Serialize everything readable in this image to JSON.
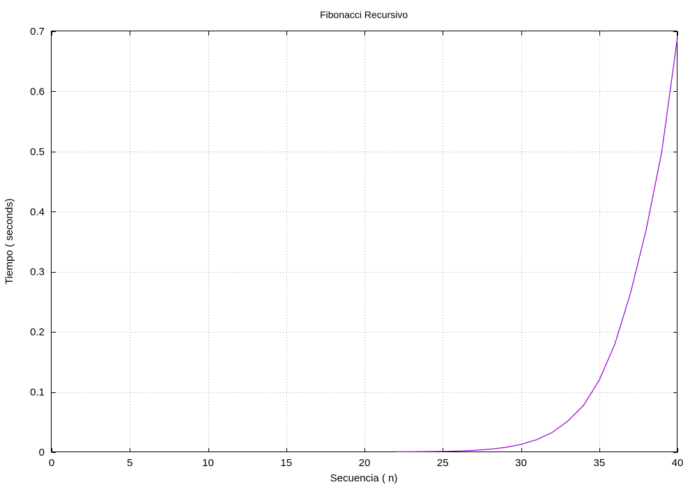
{
  "chart_data": {
    "type": "line",
    "title": "Fibonacci Recursivo",
    "xlabel": "Secuencia ( n)",
    "ylabel": "Tiempo ( seconds)",
    "xlim": [
      0,
      40
    ],
    "ylim": [
      0,
      0.7
    ],
    "xticks": [
      0,
      5,
      10,
      15,
      20,
      25,
      30,
      35,
      40
    ],
    "yticks": [
      0,
      0.1,
      0.2,
      0.3,
      0.4,
      0.5,
      0.6,
      0.7
    ],
    "xtick_labels": [
      "0",
      "5",
      "10",
      "15",
      "20",
      "25",
      "30",
      "35",
      "40"
    ],
    "ytick_labels": [
      "0",
      "0.1",
      "0.2",
      "0.3",
      "0.4",
      "0.5",
      "0.6",
      "0.7"
    ],
    "grid": true,
    "series": [
      {
        "color": "#9400d3",
        "x": [
          22,
          23,
          24,
          25,
          26,
          27,
          28,
          29,
          30,
          31,
          32,
          33,
          34,
          35,
          36,
          37,
          38,
          39,
          40
        ],
        "y": [
          0.0007,
          0.0008,
          0.001,
          0.0014,
          0.002,
          0.003,
          0.005,
          0.008,
          0.013,
          0.021,
          0.033,
          0.052,
          0.078,
          0.12,
          0.18,
          0.265,
          0.37,
          0.5,
          0.69
        ]
      }
    ]
  }
}
